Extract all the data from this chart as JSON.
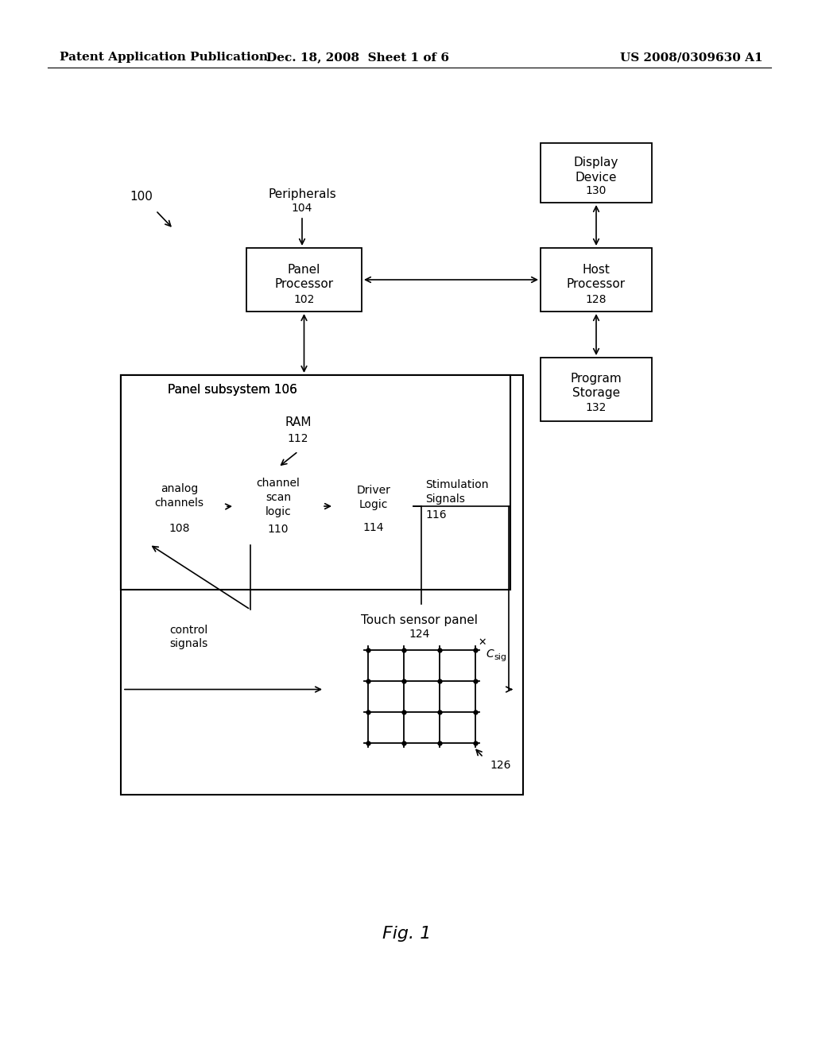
{
  "bg_color": "#ffffff",
  "header_left": "Patent Application Publication",
  "header_mid": "Dec. 18, 2008  Sheet 1 of 6",
  "header_right": "US 2008/0309630 A1",
  "fig_label": "Fig. 1"
}
